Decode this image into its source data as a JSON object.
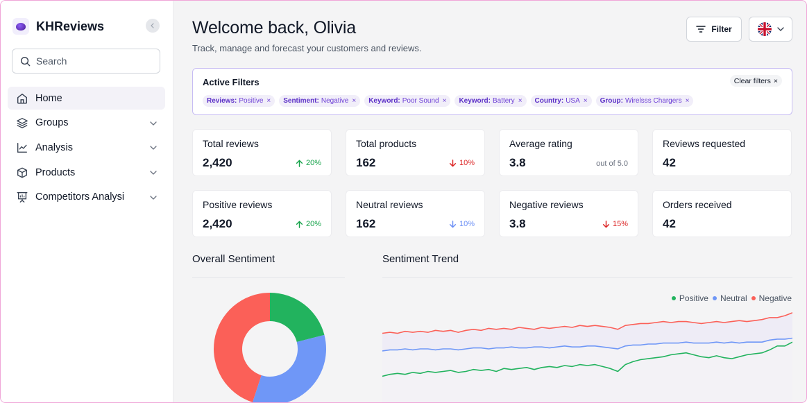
{
  "brand": {
    "name": "KHReviews"
  },
  "search": {
    "placeholder": "Search"
  },
  "nav": [
    {
      "label": "Home",
      "icon": "home-icon",
      "active": true,
      "has_children": false
    },
    {
      "label": "Groups",
      "icon": "layers-icon",
      "active": false,
      "has_children": true
    },
    {
      "label": "Analysis",
      "icon": "chart-line-icon",
      "active": false,
      "has_children": true
    },
    {
      "label": "Products",
      "icon": "box-icon",
      "active": false,
      "has_children": true
    },
    {
      "label": "Competitors Analysi",
      "icon": "presentation-icon",
      "active": false,
      "has_children": true
    }
  ],
  "header": {
    "title": "Welcome back, Olivia",
    "subtitle": "Track, manage and forecast your customers and reviews.",
    "filter_label": "Filter",
    "language_icon": "uk-flag-icon"
  },
  "filters": {
    "title": "Active Filters",
    "clear_label": "Clear filters",
    "chips": [
      {
        "key": "Reviews:",
        "value": "Positive"
      },
      {
        "key": "Sentiment:",
        "value": "Negative"
      },
      {
        "key": "Keyword:",
        "value": "Poor Sound"
      },
      {
        "key": "Keyword:",
        "value": "Battery"
      },
      {
        "key": "Country:",
        "value": "USA"
      },
      {
        "key": "Group:",
        "value": "Wirelsss Chargers"
      }
    ]
  },
  "stats": [
    {
      "title": "Total reviews",
      "value": "2,420",
      "delta": "20%",
      "direction": "up",
      "color": "#16a34a"
    },
    {
      "title": "Total products",
      "value": "162",
      "delta": "10%",
      "direction": "down",
      "color": "#dc2626"
    },
    {
      "title": "Average rating",
      "value": "3.8",
      "note": "out of 5.0"
    },
    {
      "title": "Reviews requested",
      "value": "42"
    },
    {
      "title": "Positive reviews",
      "value": "2,420",
      "delta": "20%",
      "direction": "up",
      "color": "#16a34a"
    },
    {
      "title": "Neutral reviews",
      "value": "162",
      "delta": "10%",
      "direction": "down",
      "color": "#6b8ff5"
    },
    {
      "title": "Negative reviews",
      "value": "3.8",
      "delta": "15%",
      "direction": "down",
      "color": "#dc2626"
    },
    {
      "title": "Orders received",
      "value": "42"
    }
  ],
  "sentiment": {
    "title": "Overall Sentiment",
    "segments": [
      {
        "name": "Positive",
        "value": 21,
        "color": "#22b35e"
      },
      {
        "name": "Neutral",
        "value": 34,
        "color": "#6f97f7"
      },
      {
        "name": "Negative",
        "value": 45,
        "color": "#fb6058"
      }
    ]
  },
  "trend": {
    "title": "Sentiment Trend",
    "legend": [
      {
        "name": "Positive",
        "color": "#22b35e"
      },
      {
        "name": "Neutral",
        "color": "#6f97f7"
      },
      {
        "name": "Negative",
        "color": "#fb6058"
      }
    ],
    "series": {
      "negative": [
        72,
        73,
        72,
        74,
        73,
        74,
        73,
        75,
        74,
        75,
        73,
        75,
        76,
        75,
        77,
        76,
        77,
        76,
        78,
        77,
        76,
        78,
        77,
        78,
        79,
        78,
        80,
        79,
        80,
        79,
        78,
        76,
        80,
        81,
        82,
        82,
        83,
        84,
        83,
        84,
        84,
        83,
        82,
        83,
        84,
        83,
        84,
        85,
        84,
        85,
        86,
        88,
        88,
        90,
        93
      ],
      "neutral": [
        54,
        55,
        55,
        56,
        55,
        56,
        56,
        55,
        56,
        56,
        55,
        56,
        57,
        57,
        56,
        57,
        57,
        58,
        57,
        57,
        58,
        58,
        57,
        58,
        59,
        58,
        58,
        59,
        59,
        58,
        57,
        56,
        59,
        60,
        60,
        61,
        61,
        62,
        62,
        62,
        63,
        62,
        62,
        62,
        63,
        62,
        63,
        62,
        63,
        63,
        63,
        65,
        66,
        66,
        67
      ],
      "positive": [
        28,
        30,
        31,
        30,
        32,
        31,
        33,
        32,
        33,
        34,
        32,
        33,
        35,
        34,
        35,
        33,
        36,
        35,
        36,
        37,
        35,
        37,
        38,
        37,
        39,
        38,
        40,
        39,
        40,
        38,
        36,
        33,
        40,
        43,
        45,
        46,
        47,
        48,
        50,
        51,
        52,
        50,
        48,
        47,
        49,
        47,
        46,
        48,
        50,
        51,
        52,
        55,
        59,
        59,
        63
      ]
    }
  }
}
